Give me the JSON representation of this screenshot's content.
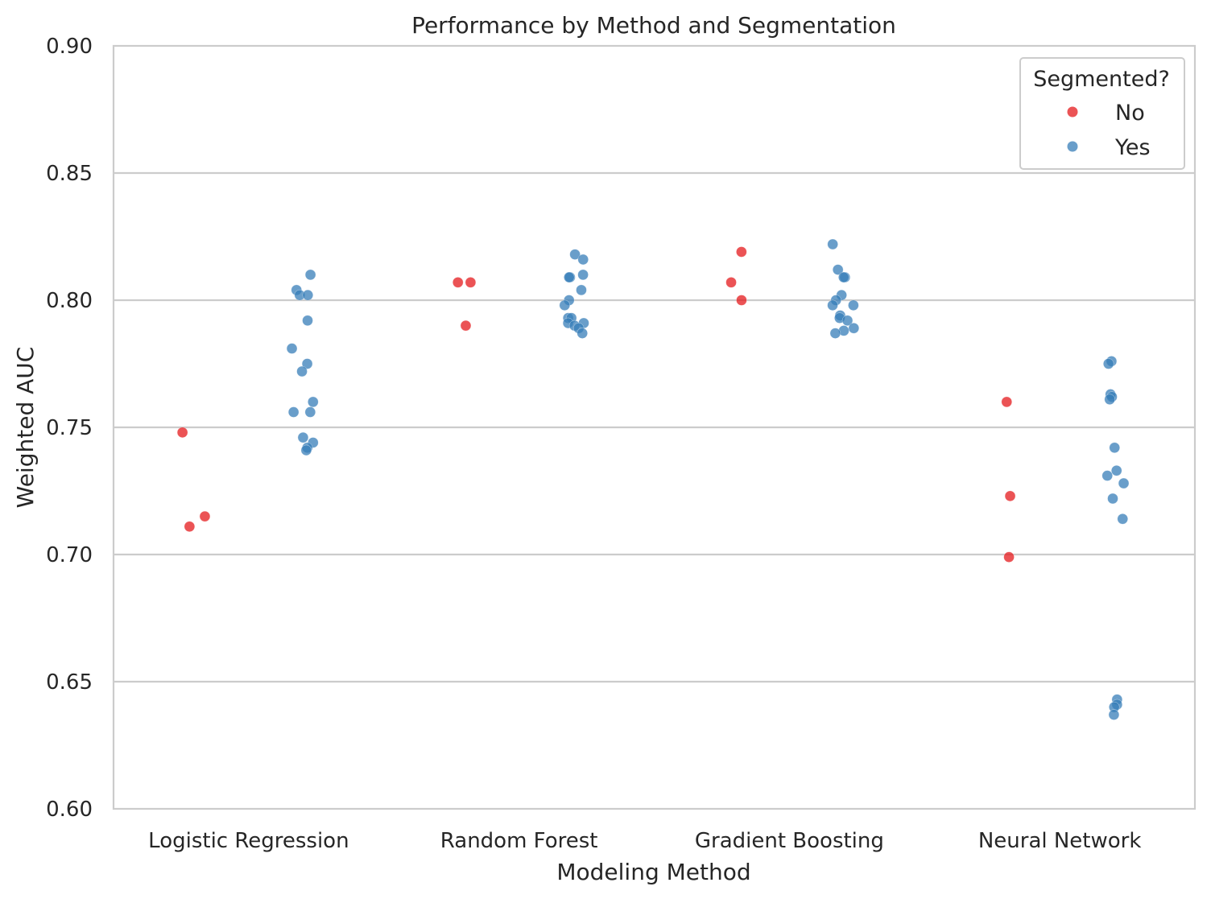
{
  "chart_data": {
    "type": "scatter",
    "title": "Performance by Method and Segmentation",
    "xlabel": "Modeling Method",
    "ylabel": "Weighted AUC",
    "categories": [
      "Logistic Regression",
      "Random Forest",
      "Gradient Boosting",
      "Neural Network"
    ],
    "ylim": [
      0.6,
      0.9
    ],
    "yticks": [
      "0.60",
      "0.65",
      "0.70",
      "0.75",
      "0.80",
      "0.85",
      "0.90"
    ],
    "grid": "horizontal",
    "legend": {
      "title": "Segmented?",
      "placement": "top-right",
      "entries": [
        "No",
        "Yes"
      ]
    },
    "series": [
      {
        "name": "No",
        "color": "#e41a1c",
        "points": [
          {
            "category": "Logistic Regression",
            "values": [
              0.748,
              0.715,
              0.711
            ]
          },
          {
            "category": "Random Forest",
            "values": [
              0.807,
              0.807,
              0.79
            ]
          },
          {
            "category": "Gradient Boosting",
            "values": [
              0.807,
              0.819,
              0.8
            ]
          },
          {
            "category": "Neural Network",
            "values": [
              0.76,
              0.723,
              0.699
            ]
          }
        ]
      },
      {
        "name": "Yes",
        "color": "#377eb8",
        "points": [
          {
            "category": "Logistic Regression",
            "values": [
              0.81,
              0.804,
              0.802,
              0.802,
              0.792,
              0.781,
              0.775,
              0.772,
              0.76,
              0.756,
              0.756,
              0.746,
              0.744,
              0.742,
              0.741
            ]
          },
          {
            "category": "Random Forest",
            "values": [
              0.818,
              0.816,
              0.81,
              0.809,
              0.809,
              0.804,
              0.8,
              0.798,
              0.793,
              0.793,
              0.791,
              0.791,
              0.79,
              0.789,
              0.787
            ]
          },
          {
            "category": "Gradient Boosting",
            "values": [
              0.822,
              0.812,
              0.809,
              0.809,
              0.802,
              0.8,
              0.798,
              0.798,
              0.794,
              0.793,
              0.792,
              0.789,
              0.788,
              0.787
            ]
          },
          {
            "category": "Neural Network",
            "values": [
              0.776,
              0.775,
              0.763,
              0.762,
              0.761,
              0.742,
              0.733,
              0.731,
              0.728,
              0.722,
              0.714,
              0.643,
              0.641,
              0.64,
              0.637
            ]
          }
        ]
      }
    ]
  }
}
